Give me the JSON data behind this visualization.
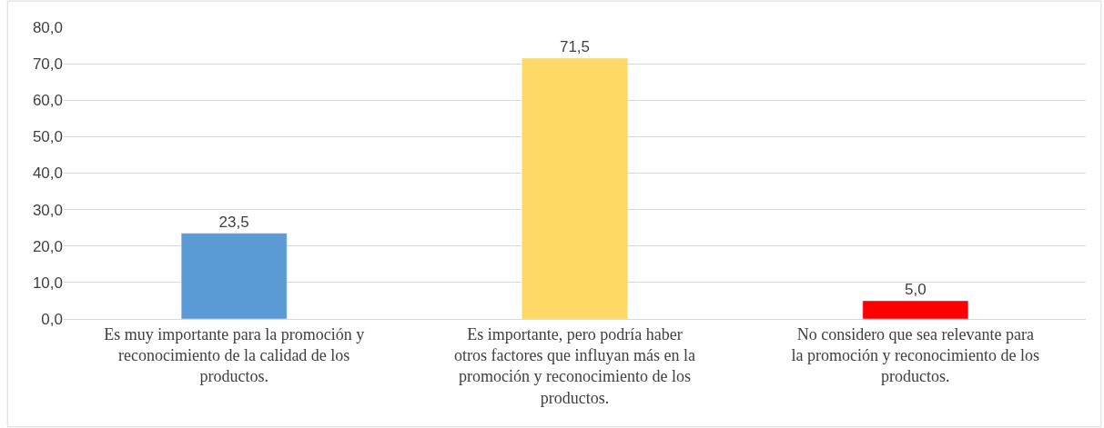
{
  "chart_data": {
    "type": "bar",
    "categories": [
      "Es muy importante para la promoción y reconocimiento de la calidad de los productos.",
      "Es importante, pero podría haber otros factores que influyan más en la promoción y reconocimiento de los productos.",
      "No considero que sea relevante para la promoción y reconocimiento de los productos."
    ],
    "values": [
      23.5,
      71.5,
      5.0
    ],
    "colors": [
      "#5b9bd5",
      "#ffd966",
      "#ff0000"
    ],
    "value_labels": [
      "23,5",
      "71,5",
      "5,0"
    ],
    "ylim": [
      0,
      80
    ],
    "yticks": [
      {
        "value": 0,
        "label": "0,0"
      },
      {
        "value": 10,
        "label": "10,0"
      },
      {
        "value": 20,
        "label": "20,0"
      },
      {
        "value": 30,
        "label": "30,0"
      },
      {
        "value": 40,
        "label": "40,0"
      },
      {
        "value": 50,
        "label": "50,0"
      },
      {
        "value": 60,
        "label": "60,0"
      },
      {
        "value": 70,
        "label": "70,0"
      },
      {
        "value": 80,
        "label": "80,0"
      }
    ],
    "grid": "y"
  }
}
